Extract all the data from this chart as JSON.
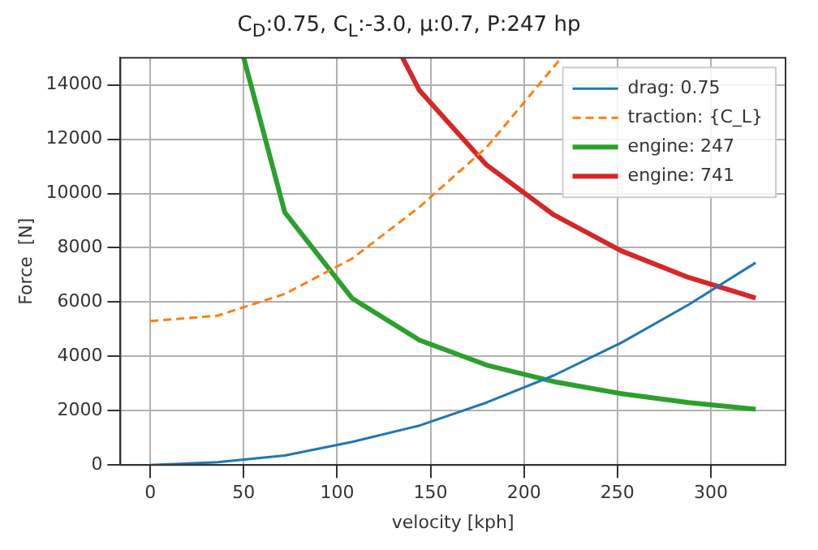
{
  "chart_data": {
    "type": "line",
    "title": "C$_{D}$:0.75,   C$_{L}$:-3.0,  μ:0.7,   P:247 hp",
    "xlabel": "velocity [kph]",
    "ylabel": "Force  [N]",
    "xlim": [
      -16,
      340
    ],
    "xticks": [
      0,
      50,
      100,
      150,
      200,
      250,
      300
    ],
    "ylim": [
      0,
      15000
    ],
    "yticks": [
      0,
      2000,
      4000,
      6000,
      8000,
      10000,
      12000,
      14000
    ],
    "grid": true,
    "legend": "top right",
    "marker": "none",
    "series": [
      {
        "name": "drag: 0.75",
        "color": "#1f77b4",
        "line_style": "solid",
        "x": [
          0,
          36,
          72,
          108,
          144,
          180,
          216,
          252,
          288,
          324
        ],
        "values": [
          0,
          100,
          350,
          850,
          1450,
          2300,
          3300,
          4500,
          5900,
          7450
        ]
      },
      {
        "name": "traction: {C_L}",
        "color": "#ff7f0e",
        "line_style": "dashed",
        "x": [
          0,
          36,
          72,
          108,
          144,
          180,
          220
        ],
        "values": [
          5300,
          5500,
          6300,
          7600,
          9500,
          11700,
          15000
        ]
      },
      {
        "name": "engine: 247",
        "color": "#2ca02c",
        "line_style": "solid",
        "x": [
          50,
          72,
          108,
          144,
          180,
          216,
          252,
          288,
          324
        ],
        "values": [
          15000,
          9300,
          6140,
          4600,
          3680,
          3070,
          2630,
          2300,
          2050
        ]
      },
      {
        "name": "engine: 741",
        "color": "#d62728",
        "line_style": "solid",
        "x": [
          135,
          144,
          180,
          216,
          252,
          288,
          324
        ],
        "values": [
          15000,
          13800,
          11050,
          9210,
          7890,
          6910,
          6150
        ]
      }
    ]
  }
}
